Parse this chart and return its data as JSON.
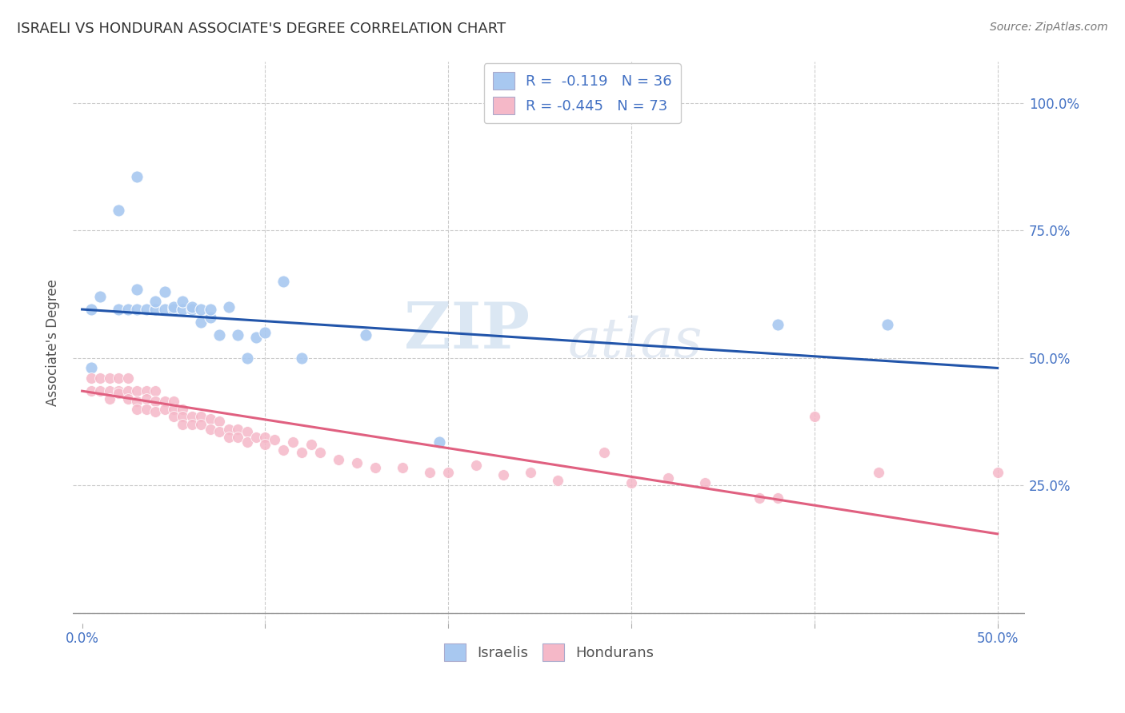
{
  "title": "ISRAELI VS HONDURAN ASSOCIATE'S DEGREE CORRELATION CHART",
  "source": "Source: ZipAtlas.com",
  "ylabel": "Associate's Degree",
  "watermark_line1": "ZIP",
  "watermark_line2": "atlas",
  "color_israeli": "#A8C8F0",
  "color_honduran": "#F5B8C8",
  "color_line_israeli": "#2255AA",
  "color_line_honduran": "#E06080",
  "color_title": "#333333",
  "color_source": "#777777",
  "color_axis": "#4472C4",
  "color_legend_text": "#4472C4",
  "yticks": [
    0.0,
    0.25,
    0.5,
    0.75,
    1.0
  ],
  "ytick_labels_right": [
    "",
    "25.0%",
    "50.0%",
    "75.0%",
    "100.0%"
  ],
  "xticks": [
    0.0,
    0.1,
    0.2,
    0.3,
    0.4,
    0.5
  ],
  "xtick_labels": [
    "0.0%",
    "",
    "",
    "",
    "",
    "50.0%"
  ],
  "xlim": [
    -0.005,
    0.515
  ],
  "ylim": [
    -0.02,
    1.08
  ],
  "israeli_x": [
    0.005,
    0.01,
    0.02,
    0.025,
    0.03,
    0.03,
    0.035,
    0.04,
    0.04,
    0.045,
    0.045,
    0.05,
    0.05,
    0.055,
    0.055,
    0.06,
    0.06,
    0.065,
    0.065,
    0.07,
    0.07,
    0.075,
    0.08,
    0.085,
    0.09,
    0.095,
    0.1,
    0.11,
    0.12,
    0.155,
    0.195,
    0.38,
    0.44,
    0.02,
    0.03,
    0.005
  ],
  "israeli_y": [
    0.595,
    0.62,
    0.595,
    0.595,
    0.595,
    0.635,
    0.595,
    0.595,
    0.61,
    0.595,
    0.63,
    0.595,
    0.6,
    0.595,
    0.61,
    0.595,
    0.6,
    0.57,
    0.595,
    0.58,
    0.595,
    0.545,
    0.6,
    0.545,
    0.5,
    0.54,
    0.55,
    0.65,
    0.5,
    0.545,
    0.335,
    0.565,
    0.565,
    0.79,
    0.855,
    0.48
  ],
  "honduran_x": [
    0.005,
    0.005,
    0.01,
    0.01,
    0.015,
    0.015,
    0.015,
    0.02,
    0.02,
    0.02,
    0.025,
    0.025,
    0.025,
    0.03,
    0.03,
    0.03,
    0.035,
    0.035,
    0.035,
    0.04,
    0.04,
    0.04,
    0.045,
    0.045,
    0.05,
    0.05,
    0.05,
    0.055,
    0.055,
    0.055,
    0.06,
    0.06,
    0.065,
    0.065,
    0.07,
    0.07,
    0.075,
    0.075,
    0.08,
    0.08,
    0.085,
    0.085,
    0.09,
    0.09,
    0.095,
    0.1,
    0.1,
    0.105,
    0.11,
    0.115,
    0.12,
    0.125,
    0.13,
    0.14,
    0.15,
    0.16,
    0.175,
    0.19,
    0.2,
    0.215,
    0.23,
    0.245,
    0.26,
    0.285,
    0.3,
    0.32,
    0.34,
    0.37,
    0.38,
    0.4,
    0.435,
    0.5
  ],
  "honduran_y": [
    0.435,
    0.46,
    0.435,
    0.46,
    0.435,
    0.46,
    0.42,
    0.435,
    0.46,
    0.43,
    0.435,
    0.46,
    0.42,
    0.435,
    0.415,
    0.4,
    0.435,
    0.42,
    0.4,
    0.435,
    0.415,
    0.395,
    0.415,
    0.4,
    0.415,
    0.4,
    0.385,
    0.4,
    0.385,
    0.37,
    0.385,
    0.37,
    0.385,
    0.37,
    0.38,
    0.36,
    0.375,
    0.355,
    0.36,
    0.345,
    0.36,
    0.345,
    0.355,
    0.335,
    0.345,
    0.345,
    0.33,
    0.34,
    0.32,
    0.335,
    0.315,
    0.33,
    0.315,
    0.3,
    0.295,
    0.285,
    0.285,
    0.275,
    0.275,
    0.29,
    0.27,
    0.275,
    0.26,
    0.315,
    0.255,
    0.265,
    0.255,
    0.225,
    0.225,
    0.385,
    0.275,
    0.275
  ],
  "israeli_line_x": [
    0.0,
    0.5
  ],
  "israeli_line_y": [
    0.595,
    0.48
  ],
  "honduran_line_x": [
    0.0,
    0.5
  ],
  "honduran_line_y": [
    0.435,
    0.155
  ]
}
